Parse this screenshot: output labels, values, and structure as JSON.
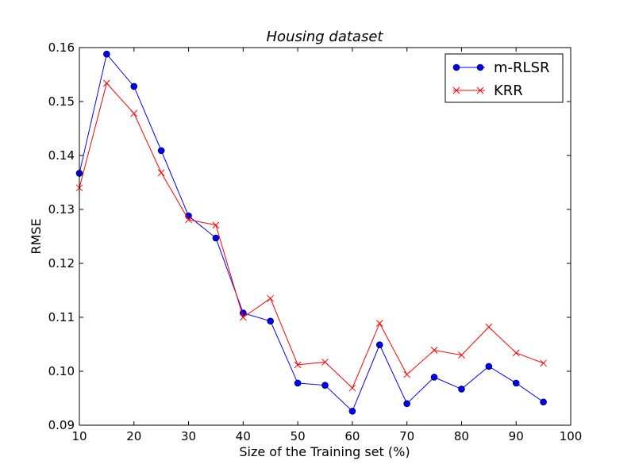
{
  "chart_data": {
    "type": "line",
    "title": "Housing dataset",
    "xlabel": "Size of the Training set (%)",
    "ylabel": "RMSE",
    "xlim": [
      10,
      100
    ],
    "ylim": [
      0.09,
      0.16
    ],
    "xticks": [
      10,
      20,
      30,
      40,
      50,
      60,
      70,
      80,
      90,
      100
    ],
    "xtick_labels": [
      "10",
      "20",
      "30",
      "40",
      "50",
      "60",
      "70",
      "80",
      "90",
      "100"
    ],
    "yticks": [
      0.09,
      0.1,
      0.11,
      0.12,
      0.13,
      0.14,
      0.15,
      0.16
    ],
    "ytick_labels": [
      "0.09",
      "0.10",
      "0.11",
      "0.12",
      "0.13",
      "0.14",
      "0.15",
      "0.16"
    ],
    "legend_position": "top-right",
    "grid": false,
    "x": [
      10,
      15,
      20,
      25,
      30,
      35,
      40,
      45,
      50,
      55,
      60,
      65,
      70,
      75,
      80,
      85,
      90,
      95
    ],
    "series": [
      {
        "name": "m-RLSR",
        "color": "#0000ff",
        "marker": "circle",
        "values": [
          0.1367,
          0.1588,
          0.1528,
          0.1409,
          0.1288,
          0.1247,
          0.1108,
          0.1093,
          0.0978,
          0.0974,
          0.0926,
          0.1049,
          0.094,
          0.0989,
          0.0967,
          0.1009,
          0.0978,
          0.0943
        ]
      },
      {
        "name": "KRR",
        "color": "#ff0000",
        "marker": "x",
        "values": [
          0.134,
          0.1534,
          0.1478,
          0.1368,
          0.1281,
          0.1271,
          0.11,
          0.1135,
          0.1012,
          0.1017,
          0.0969,
          0.1089,
          0.0994,
          0.1039,
          0.103,
          0.1082,
          0.1034,
          0.1015
        ]
      }
    ]
  }
}
